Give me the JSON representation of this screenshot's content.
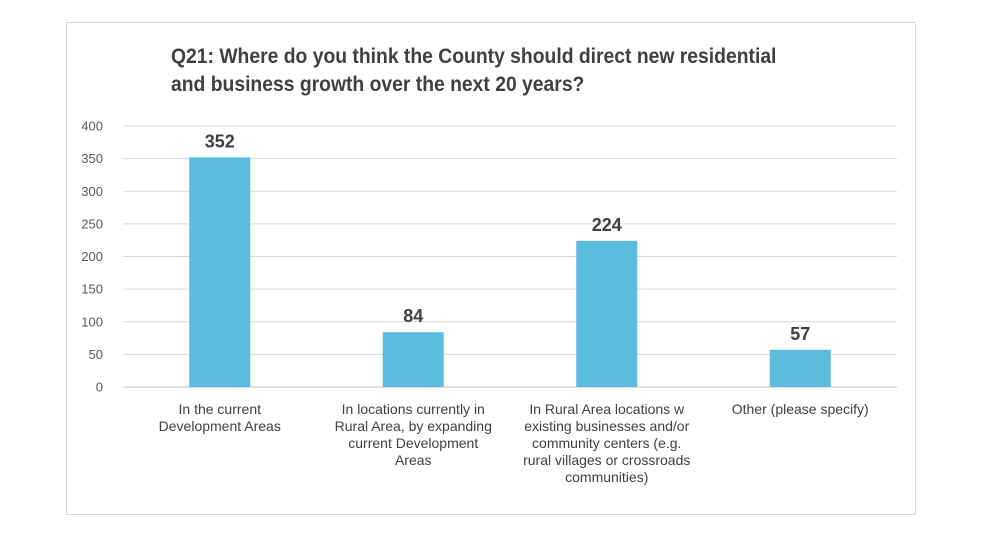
{
  "chart_data": {
    "type": "bar",
    "title": "Q21: Where do you think the County should direct new residential and business growth over the next 20 years?",
    "categories": [
      "In the current Development Areas",
      "In locations currently in Rural Area, by expanding current Development Areas",
      "In Rural Area locations w existing businesses and/or community centers (e.g. rural villages or crossroads communities)",
      "Other (please specify)"
    ],
    "category_lines": [
      [
        "In the current",
        "Development Areas"
      ],
      [
        "In locations currently in",
        "Rural Area, by expanding",
        "current Development",
        "Areas"
      ],
      [
        "In Rural Area locations w",
        "existing businesses and/or",
        "community centers (e.g.",
        "rural villages or crossroads",
        "communities)"
      ],
      [
        "Other (please specify)"
      ]
    ],
    "values": [
      352,
      84,
      224,
      57
    ],
    "data_labels": [
      "352",
      "84",
      "224",
      "57"
    ],
    "yticks": [
      "0",
      "50",
      "100",
      "150",
      "200",
      "250",
      "300",
      "350",
      "400"
    ],
    "ylim": [
      0,
      400
    ],
    "xlabel": "",
    "ylabel": "",
    "grid": true,
    "legend": "none",
    "colors": {
      "bar": "#5bbcdd",
      "grid": "#d9d9d9",
      "text": "#404040",
      "tick": "#595959"
    }
  }
}
